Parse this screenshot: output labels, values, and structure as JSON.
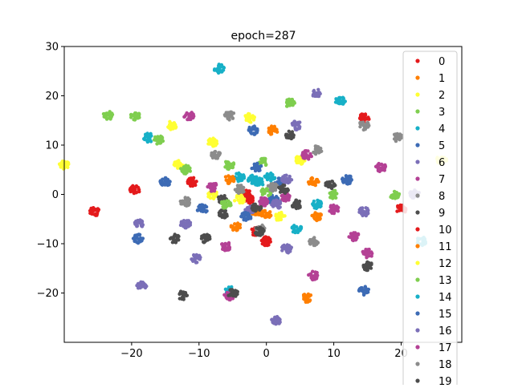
{
  "chart_data": {
    "type": "scatter",
    "title": "epoch=287",
    "xlabel": "",
    "ylabel": "",
    "xlim": [
      -30,
      29
    ],
    "ylim": [
      -30,
      30
    ],
    "xticks": [
      -20,
      -10,
      0,
      10,
      20
    ],
    "yticks": [
      -20,
      -10,
      0,
      10,
      20,
      30
    ],
    "grid": false,
    "legend": {
      "placement": "top-right"
    },
    "series": [
      {
        "name": "0",
        "color": "#e41a1c",
        "centers": [
          [
            -25.5,
            -3.5
          ],
          [
            -19.5,
            1
          ],
          [
            -11,
            2.5
          ],
          [
            -1.5,
            -7.5
          ],
          [
            0,
            -9.5
          ],
          [
            14.5,
            15.5
          ],
          [
            20,
            -3
          ]
        ]
      },
      {
        "name": "1",
        "color": "#ff7f00",
        "centers": [
          [
            -4.5,
            -6.5
          ],
          [
            -1.5,
            -3.5
          ],
          [
            1,
            13
          ],
          [
            6,
            -21
          ],
          [
            7,
            2.5
          ],
          [
            7.5,
            -4.5
          ]
        ]
      },
      {
        "name": "2",
        "color": "#ffff33",
        "centers": [
          [
            -30,
            6
          ],
          [
            -13,
            6
          ],
          [
            -14,
            14
          ],
          [
            -8,
            10.5
          ],
          [
            -2.5,
            15.5
          ],
          [
            -8,
            0
          ],
          [
            5,
            7
          ],
          [
            26,
            7
          ]
        ]
      },
      {
        "name": "3",
        "color": "#7fce4f",
        "centers": [
          [
            -23.5,
            16
          ],
          [
            -19.5,
            16
          ],
          [
            -16,
            11
          ],
          [
            -12,
            5
          ],
          [
            -5.5,
            6
          ],
          [
            -0.5,
            6.5
          ],
          [
            3.5,
            18.5
          ],
          [
            10,
            0
          ],
          [
            19,
            0
          ]
        ]
      },
      {
        "name": "4",
        "color": "#17b0c7",
        "centers": [
          [
            -17.5,
            11.5
          ],
          [
            -7,
            25.5
          ],
          [
            -4,
            3.5
          ],
          [
            -2,
            3
          ],
          [
            4.5,
            -7
          ],
          [
            7.5,
            -2
          ],
          [
            11,
            19
          ],
          [
            23,
            -9.5
          ],
          [
            -5.5,
            -19.5
          ]
        ]
      },
      {
        "name": "5",
        "color": "#3d6bb5",
        "centers": [
          [
            -15,
            2.5
          ],
          [
            -19,
            -9
          ],
          [
            -9.5,
            -3
          ],
          [
            -2,
            13
          ],
          [
            -1.5,
            5.5
          ],
          [
            1,
            -1
          ],
          [
            12,
            3
          ],
          [
            14.5,
            -19.5
          ]
        ]
      },
      {
        "name": "6",
        "color": "#7b6fb8",
        "centers": [
          [
            -18.5,
            -18.5
          ],
          [
            -19,
            -6
          ],
          [
            -12,
            -6
          ],
          [
            -10.5,
            -13
          ],
          [
            -2.5,
            -3
          ],
          [
            3,
            -11
          ],
          [
            4.5,
            14
          ],
          [
            7.5,
            20.5
          ],
          [
            14.5,
            -3.5
          ],
          [
            1.5,
            -25.5
          ],
          [
            22,
            0
          ]
        ]
      },
      {
        "name": "7",
        "color": "#b44195",
        "centers": [
          [
            -11.5,
            16
          ],
          [
            -8,
            1.5
          ],
          [
            -6,
            -10.5
          ],
          [
            6,
            8
          ],
          [
            10,
            -3
          ],
          [
            17,
            5.5
          ],
          [
            13,
            -8.5
          ],
          [
            15,
            -12
          ],
          [
            7,
            -16.5
          ],
          [
            -5.5,
            -20.5
          ]
        ]
      },
      {
        "name": "8",
        "color": "#8c8c8c",
        "centers": [
          [
            -5.5,
            16
          ],
          [
            -7.5,
            8
          ],
          [
            -12,
            -1.5
          ],
          [
            -1,
            -7
          ],
          [
            7.5,
            9
          ],
          [
            7,
            -9.5
          ],
          [
            14.5,
            14
          ],
          [
            19.5,
            11.5
          ]
        ]
      },
      {
        "name": "9",
        "color": "#4d4d4d",
        "centers": [
          [
            -9,
            -9
          ],
          [
            -6.5,
            -4
          ],
          [
            -6.5,
            -1
          ],
          [
            -13.5,
            -9
          ],
          [
            -12.5,
            -20.5
          ],
          [
            -5,
            -20
          ],
          [
            3.5,
            12
          ],
          [
            4.5,
            -2
          ],
          [
            9.5,
            2
          ],
          [
            15,
            -14.5
          ],
          [
            -1,
            -7.5
          ]
        ]
      },
      {
        "name": "10",
        "color": "#e41a1c",
        "centers": [
          [
            -3,
            0
          ],
          [
            -2.5,
            -1
          ]
        ]
      },
      {
        "name": "11",
        "color": "#ff7f00",
        "centers": [
          [
            -5.5,
            3
          ],
          [
            0,
            -4
          ]
        ]
      },
      {
        "name": "12",
        "color": "#ffff33",
        "centers": [
          [
            -4,
            -1
          ],
          [
            2,
            -4.5
          ]
        ]
      },
      {
        "name": "13",
        "color": "#7fce4f",
        "centers": [
          [
            0,
            0.5
          ],
          [
            -6,
            -2
          ]
        ]
      },
      {
        "name": "14",
        "color": "#17b0c7",
        "centers": [
          [
            -1,
            2.5
          ],
          [
            0.5,
            3.5
          ]
        ]
      },
      {
        "name": "15",
        "color": "#3d6bb5",
        "centers": [
          [
            2,
            2.5
          ],
          [
            -3,
            -4.5
          ]
        ]
      },
      {
        "name": "16",
        "color": "#7b6fb8",
        "centers": [
          [
            3,
            3
          ],
          [
            1.5,
            -2
          ]
        ]
      },
      {
        "name": "17",
        "color": "#b44195",
        "centers": [
          [
            -0.5,
            -1.5
          ],
          [
            3,
            -0.5
          ]
        ]
      },
      {
        "name": "18",
        "color": "#8c8c8c",
        "centers": [
          [
            1,
            1.5
          ],
          [
            -4,
            1
          ]
        ]
      },
      {
        "name": "19",
        "color": "#4d4d4d",
        "centers": [
          [
            -1.5,
            -2.5
          ],
          [
            2.5,
            1
          ]
        ]
      }
    ]
  }
}
